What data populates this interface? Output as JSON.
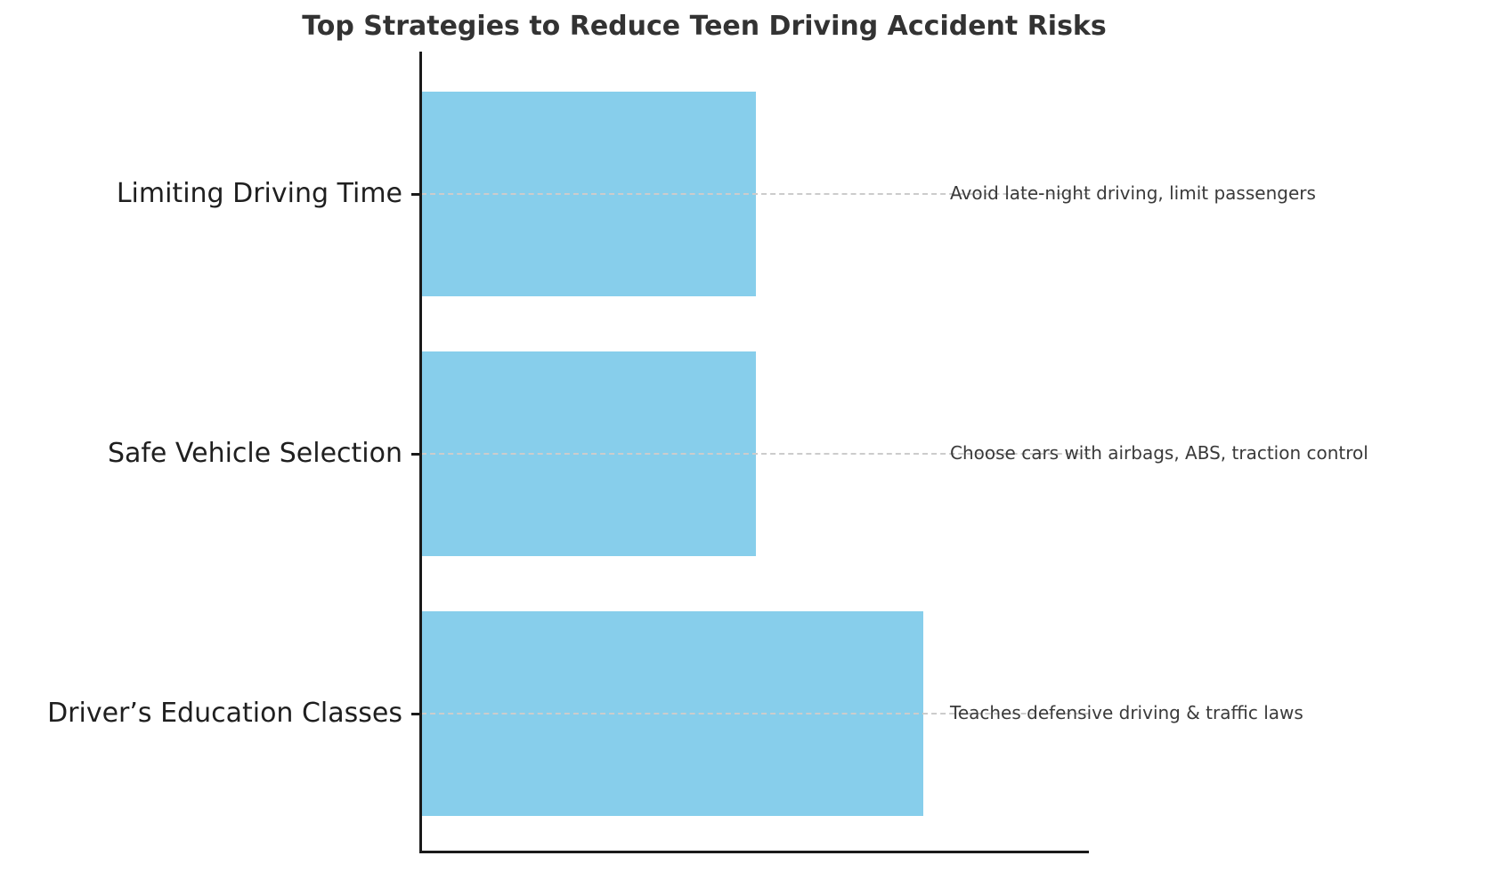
{
  "chart_data": {
    "type": "bar",
    "orientation": "horizontal",
    "title": "Top Strategies to Reduce Teen Driving Accident Risks",
    "categories": [
      "Limiting Driving Time",
      "Safe Vehicle Selection",
      "Driver’s Education Classes"
    ],
    "values": [
      50,
      50,
      75
    ],
    "annotations": [
      "Avoid late-night driving, limit passengers",
      "Choose cars with airbags, ABS, traction control",
      "Teaches defensive driving & traffic laws"
    ],
    "xlabel": "",
    "ylabel": "",
    "xlim": [
      0,
      100
    ],
    "value_axis_tick_labels_visible": false,
    "legend": "none",
    "grid": "dashed gray horizontal line at each bar center",
    "bar_color": "#87CEEB",
    "axis_color": "#1a1a1a",
    "gridline_color": "#cccccc",
    "title_color": "#333333",
    "label_color": "#1f1f1f",
    "annotation_color": "#3a3a3a",
    "background_color": "#ffffff"
  }
}
